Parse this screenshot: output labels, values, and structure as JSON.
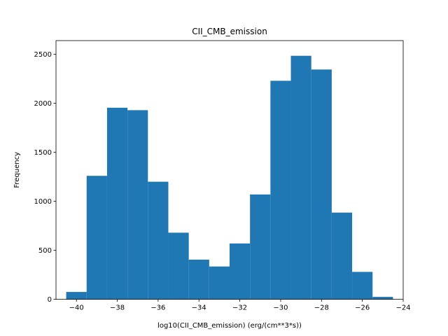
{
  "chart_data": {
    "type": "bar",
    "title": "CII_CMB_emission",
    "xlabel": "log10(CII_CMB_emission) (erg/(cm**3*s))",
    "ylabel": "Frequency",
    "xlim": [
      -41,
      -24
    ],
    "ylim": [
      0,
      2640
    ],
    "xticks": [
      -40,
      -38,
      -36,
      -34,
      -32,
      -30,
      -28,
      -26,
      -24
    ],
    "xtick_labels": [
      "−40",
      "−38",
      "−36",
      "−34",
      "−32",
      "−30",
      "−28",
      "−26",
      "−24"
    ],
    "yticks": [
      0,
      500,
      1000,
      1500,
      2000,
      2500
    ],
    "ytick_labels": [
      "0",
      "500",
      "1000",
      "1500",
      "2000",
      "2500"
    ],
    "grid": false,
    "bar_color": "#1f77b4",
    "bins": [
      {
        "x0": -40.5,
        "x1": -39.5,
        "value": 75
      },
      {
        "x0": -39.5,
        "x1": -38.5,
        "value": 1260
      },
      {
        "x0": -38.5,
        "x1": -37.5,
        "value": 1955
      },
      {
        "x0": -37.5,
        "x1": -36.5,
        "value": 1930
      },
      {
        "x0": -36.5,
        "x1": -35.5,
        "value": 1200
      },
      {
        "x0": -35.5,
        "x1": -34.5,
        "value": 680
      },
      {
        "x0": -34.5,
        "x1": -33.5,
        "value": 405
      },
      {
        "x0": -33.5,
        "x1": -32.5,
        "value": 335
      },
      {
        "x0": -32.5,
        "x1": -31.5,
        "value": 570
      },
      {
        "x0": -31.5,
        "x1": -30.5,
        "value": 1070
      },
      {
        "x0": -30.5,
        "x1": -29.5,
        "value": 2230
      },
      {
        "x0": -29.5,
        "x1": -28.5,
        "value": 2485
      },
      {
        "x0": -28.5,
        "x1": -27.5,
        "value": 2345
      },
      {
        "x0": -27.5,
        "x1": -26.5,
        "value": 885
      },
      {
        "x0": -26.5,
        "x1": -25.5,
        "value": 280
      },
      {
        "x0": -25.5,
        "x1": -24.5,
        "value": 25
      }
    ]
  }
}
